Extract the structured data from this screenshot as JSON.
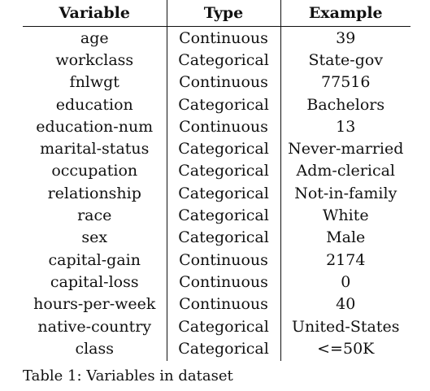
{
  "table": {
    "headers": [
      "Variable",
      "Type",
      "Example"
    ],
    "rows": [
      [
        "age",
        "Continuous",
        "39"
      ],
      [
        "workclass",
        "Categorical",
        "State-gov"
      ],
      [
        "fnlwgt",
        "Continuous",
        "77516"
      ],
      [
        "education",
        "Categorical",
        "Bachelors"
      ],
      [
        "education-num",
        "Continuous",
        "13"
      ],
      [
        "marital-status",
        "Categorical",
        "Never-married"
      ],
      [
        "occupation",
        "Categorical",
        "Adm-clerical"
      ],
      [
        "relationship",
        "Categorical",
        "Not-in-family"
      ],
      [
        "race",
        "Categorical",
        "White"
      ],
      [
        "sex",
        "Categorical",
        "Male"
      ],
      [
        "capital-gain",
        "Continuous",
        "2174"
      ],
      [
        "capital-loss",
        "Continuous",
        "0"
      ],
      [
        "hours-per-week",
        "Continuous",
        "40"
      ],
      [
        "native-country",
        "Categorical",
        "United-States"
      ],
      [
        "class",
        "Categorical",
        "<=50K"
      ]
    ]
  },
  "caption": "Table 1: Variables in dataset"
}
